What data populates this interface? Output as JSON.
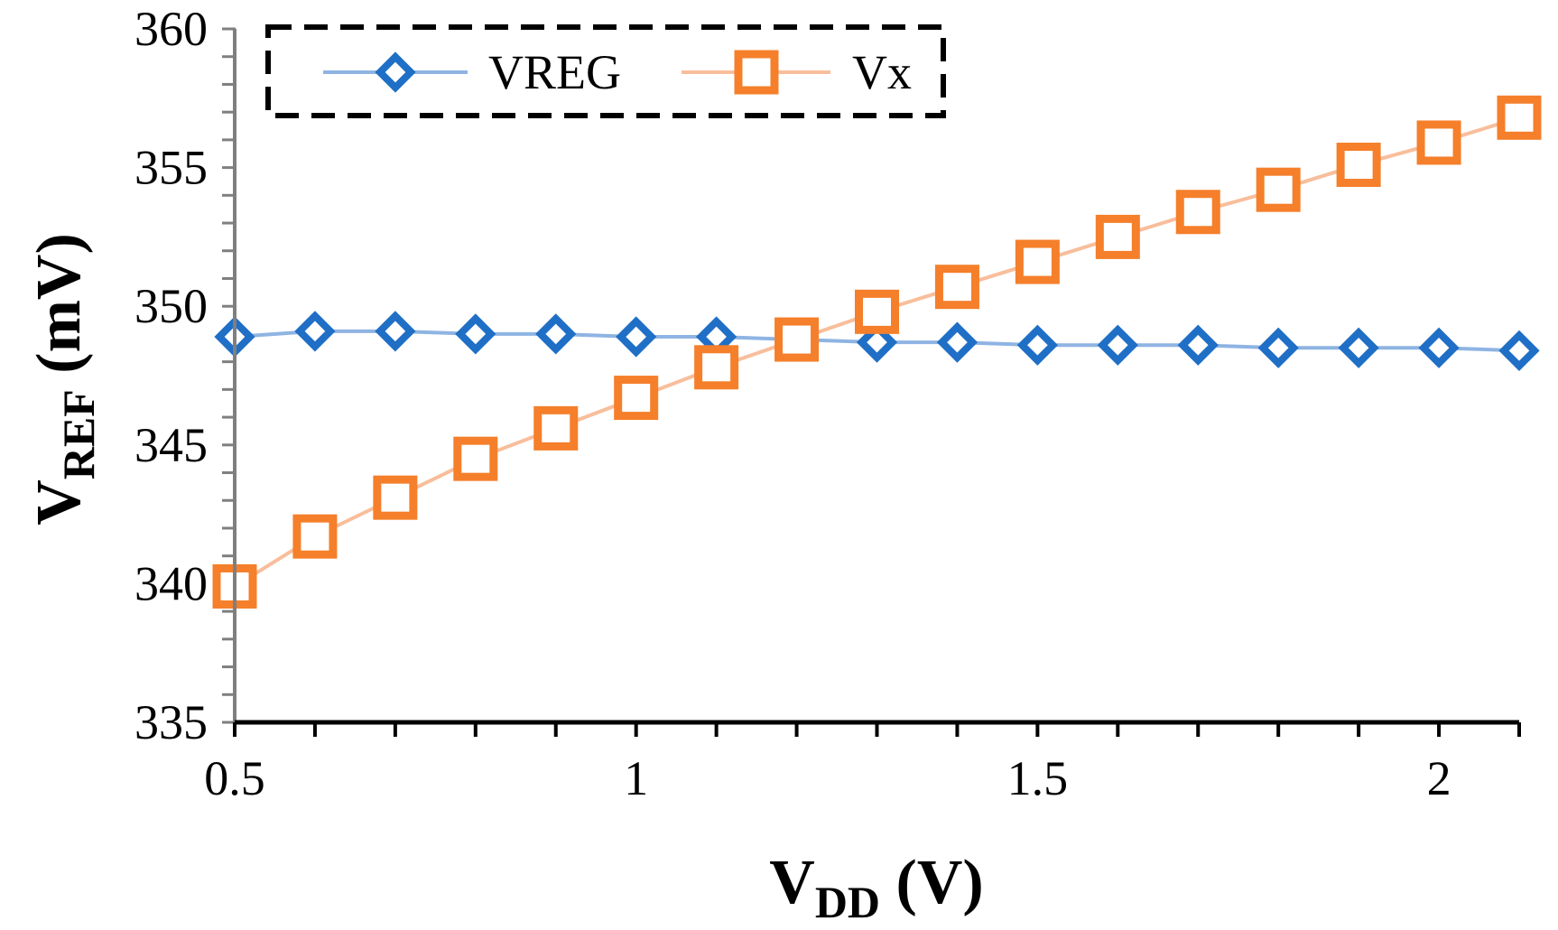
{
  "chart_data": {
    "type": "line",
    "x": [
      0.5,
      0.6,
      0.7,
      0.8,
      0.9,
      1.0,
      1.1,
      1.2,
      1.3,
      1.4,
      1.5,
      1.6,
      1.7,
      1.8,
      1.9,
      2.0,
      2.1
    ],
    "series": [
      {
        "name": "VREG",
        "marker": "diamond",
        "line_color": "#8FB4E3",
        "marker_color": "#1F6FC6",
        "values": [
          348.9,
          349.1,
          349.1,
          349.0,
          349.0,
          348.9,
          348.9,
          348.8,
          348.7,
          348.7,
          348.6,
          348.6,
          348.6,
          348.5,
          348.5,
          348.5,
          348.4
        ]
      },
      {
        "name": "Vx",
        "marker": "square",
        "line_color": "#F8BE9B",
        "marker_color": "#F57F2A",
        "values": [
          339.9,
          341.7,
          343.1,
          344.5,
          345.6,
          346.7,
          347.8,
          348.8,
          349.8,
          350.7,
          351.6,
          352.5,
          353.4,
          354.2,
          355.1,
          355.9,
          356.8
        ]
      }
    ],
    "xlim": [
      0.5,
      2.1
    ],
    "ylim": [
      335,
      360
    ],
    "xticks": [
      0.5,
      1,
      1.5,
      2
    ],
    "xtick_labels": [
      "0.5",
      "1",
      "1.5",
      "2"
    ],
    "yticks": [
      335,
      340,
      345,
      350,
      355,
      360
    ],
    "ytick_labels": [
      "335",
      "340",
      "345",
      "350",
      "355",
      "360"
    ],
    "xlabel": {
      "main": "V",
      "sub": "DD",
      "rest": " (V)"
    },
    "ylabel": {
      "main": "V",
      "sub": "REF",
      "rest": " (mV)"
    },
    "legend_position": "top-left",
    "legend_labels": [
      "VREG",
      "Vx"
    ]
  }
}
